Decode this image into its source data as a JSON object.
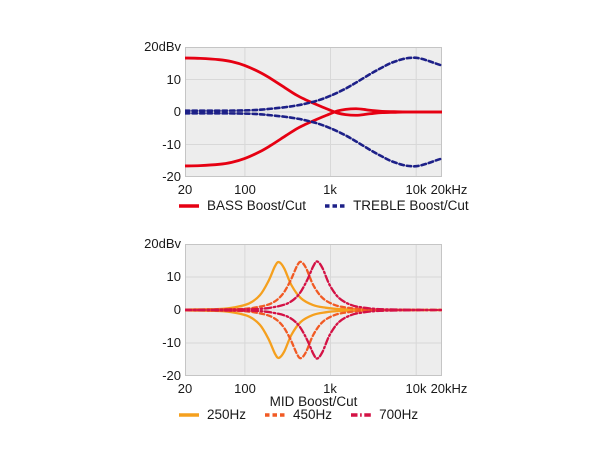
{
  "figure": {
    "colors": {
      "plot_bg": "#ededed",
      "grid": "#d8d8d8",
      "plot_border": "#c5c5c5",
      "bass_red": "#e60012",
      "treble_navy": "#1d2088",
      "mid_250_orange": "#f5a01e",
      "mid_450_orangered": "#f15a24",
      "mid_700_crimson": "#d41245"
    }
  },
  "chart_data": [
    {
      "type": "line",
      "name": "bass-treble-boost-cut",
      "x_scale": "log",
      "xlim": [
        20,
        20000
      ],
      "ylim": [
        -20,
        20
      ],
      "grid": {
        "x": [
          100,
          1000,
          10000
        ],
        "y": [
          10,
          0,
          -10
        ]
      },
      "x_tick_labels": [
        "20",
        "100",
        "1k",
        "10k",
        "20kHz"
      ],
      "y_tick_labels": [
        "20dBv",
        "10",
        "0",
        "-10",
        "-20"
      ],
      "xlabel": "",
      "legend_position": "bottom",
      "series": [
        {
          "label": "BASS Boost/Cut",
          "variant": "boost",
          "color": "#e60012",
          "style": "solid",
          "width": 2.8,
          "points": [
            [
              20,
              16.6
            ],
            [
              30,
              16.5
            ],
            [
              50,
              16.1
            ],
            [
              70,
              15.5
            ],
            [
              100,
              14.3
            ],
            [
              150,
              12.2
            ],
            [
              200,
              10.3
            ],
            [
              300,
              7.3
            ],
            [
              400,
              5.2
            ],
            [
              500,
              3.9
            ],
            [
              700,
              2.2
            ],
            [
              900,
              1.0
            ],
            [
              1000,
              0.5
            ],
            [
              1200,
              -0.3
            ],
            [
              1500,
              -0.8
            ],
            [
              2000,
              -1.0
            ],
            [
              2600,
              -0.7
            ],
            [
              3200,
              -0.4
            ],
            [
              4000,
              -0.2
            ],
            [
              5500,
              -0.1
            ],
            [
              8000,
              0
            ],
            [
              20000,
              0
            ]
          ]
        },
        {
          "label": "BASS Boost/Cut",
          "variant": "cut",
          "color": "#e60012",
          "style": "solid",
          "width": 2.8,
          "points": [
            [
              20,
              -16.6
            ],
            [
              30,
              -16.5
            ],
            [
              50,
              -16.1
            ],
            [
              70,
              -15.5
            ],
            [
              100,
              -14.3
            ],
            [
              150,
              -12.2
            ],
            [
              200,
              -10.3
            ],
            [
              300,
              -7.3
            ],
            [
              400,
              -5.2
            ],
            [
              500,
              -3.9
            ],
            [
              700,
              -2.2
            ],
            [
              900,
              -1.0
            ],
            [
              1000,
              -0.5
            ],
            [
              1200,
              0.3
            ],
            [
              1500,
              0.8
            ],
            [
              2000,
              1.0
            ],
            [
              2600,
              0.7
            ],
            [
              3200,
              0.4
            ],
            [
              4000,
              0.2
            ],
            [
              5500,
              0.1
            ],
            [
              8000,
              0
            ],
            [
              20000,
              0
            ]
          ]
        },
        {
          "label": "TREBLE Boost/Cut",
          "variant": "boost",
          "color": "#1d2088",
          "style": "dashed",
          "width": 2.6,
          "points": [
            [
              20,
              0.4
            ],
            [
              50,
              0.4
            ],
            [
              100,
              0.5
            ],
            [
              150,
              0.7
            ],
            [
              200,
              1.0
            ],
            [
              300,
              1.5
            ],
            [
              400,
              2.0
            ],
            [
              500,
              2.5
            ],
            [
              700,
              3.5
            ],
            [
              1000,
              5.0
            ],
            [
              1500,
              7.2
            ],
            [
              2000,
              9.1
            ],
            [
              3000,
              11.9
            ],
            [
              4000,
              13.7
            ],
            [
              5000,
              15.0
            ],
            [
              7000,
              16.3
            ],
            [
              9000,
              16.7
            ],
            [
              11000,
              16.5
            ],
            [
              14000,
              15.7
            ],
            [
              17000,
              14.9
            ],
            [
              20000,
              14.3
            ]
          ]
        },
        {
          "label": "TREBLE Boost/Cut",
          "variant": "cut",
          "color": "#1d2088",
          "style": "dashed",
          "width": 2.6,
          "points": [
            [
              20,
              -0.4
            ],
            [
              50,
              -0.4
            ],
            [
              100,
              -0.5
            ],
            [
              150,
              -0.7
            ],
            [
              200,
              -1.0
            ],
            [
              300,
              -1.5
            ],
            [
              400,
              -2.0
            ],
            [
              500,
              -2.5
            ],
            [
              700,
              -3.5
            ],
            [
              1000,
              -5.0
            ],
            [
              1500,
              -7.2
            ],
            [
              2000,
              -9.1
            ],
            [
              3000,
              -11.9
            ],
            [
              4000,
              -13.7
            ],
            [
              5000,
              -15.0
            ],
            [
              7000,
              -16.3
            ],
            [
              9000,
              -16.7
            ],
            [
              11000,
              -16.5
            ],
            [
              14000,
              -15.7
            ],
            [
              17000,
              -14.9
            ],
            [
              20000,
              -14.3
            ]
          ]
        }
      ]
    },
    {
      "type": "line",
      "name": "mid-boost-cut",
      "x_scale": "log",
      "xlim": [
        20,
        20000
      ],
      "ylim": [
        -20,
        20
      ],
      "grid": {
        "x": [
          100,
          1000,
          10000
        ],
        "y": [
          10,
          0,
          -10
        ]
      },
      "x_tick_labels": [
        "20",
        "100",
        "1k",
        "10k",
        "20kHz"
      ],
      "y_tick_labels": [
        "20dBv",
        "10",
        "0",
        "-10",
        "-20"
      ],
      "xlabel": "MID Boost/Cut",
      "legend_position": "bottom",
      "series": [
        {
          "label": "250Hz",
          "variant": "boost",
          "color": "#f5a01e",
          "style": "solid",
          "width": 2.3,
          "points": [
            [
              20,
              0.1
            ],
            [
              31,
              0.2
            ],
            [
              50,
              0.3
            ],
            [
              75,
              0.8
            ],
            [
              112,
              2.0
            ],
            [
              150,
              4.5
            ],
            [
              188,
              8.7
            ],
            [
              225,
              13.3
            ],
            [
              250,
              14.5
            ],
            [
              288,
              12.6
            ],
            [
              350,
              7.5
            ],
            [
              450,
              3.6
            ],
            [
              625,
              1.5
            ],
            [
              875,
              0.7
            ],
            [
              1250,
              0.3
            ],
            [
              2000,
              0.15
            ],
            [
              3800,
              0.05
            ],
            [
              8000,
              0
            ],
            [
              20000,
              0
            ]
          ]
        },
        {
          "label": "250Hz",
          "variant": "cut",
          "color": "#f5a01e",
          "style": "solid",
          "width": 2.3,
          "points": [
            [
              20,
              -0.1
            ],
            [
              31,
              -0.2
            ],
            [
              50,
              -0.3
            ],
            [
              75,
              -0.8
            ],
            [
              112,
              -2.0
            ],
            [
              150,
              -4.5
            ],
            [
              188,
              -8.7
            ],
            [
              225,
              -13.3
            ],
            [
              250,
              -14.5
            ],
            [
              288,
              -12.6
            ],
            [
              350,
              -7.5
            ],
            [
              450,
              -3.6
            ],
            [
              625,
              -1.5
            ],
            [
              875,
              -0.7
            ],
            [
              1250,
              -0.3
            ],
            [
              2000,
              -0.15
            ],
            [
              3800,
              -0.05
            ],
            [
              8000,
              0
            ],
            [
              20000,
              0
            ]
          ]
        },
        {
          "label": "450Hz",
          "variant": "boost",
          "color": "#f15a24",
          "style": "dashed",
          "width": 2.3,
          "points": [
            [
              20,
              0.05
            ],
            [
              56,
              0.2
            ],
            [
              90,
              0.3
            ],
            [
              135,
              0.8
            ],
            [
              203,
              2.0
            ],
            [
              270,
              4.5
            ],
            [
              338,
              8.7
            ],
            [
              405,
              13.3
            ],
            [
              450,
              14.6
            ],
            [
              518,
              12.7
            ],
            [
              630,
              7.5
            ],
            [
              810,
              3.6
            ],
            [
              1125,
              1.5
            ],
            [
              1575,
              0.7
            ],
            [
              2250,
              0.3
            ],
            [
              3600,
              0.15
            ],
            [
              6800,
              0.05
            ],
            [
              14000,
              0
            ],
            [
              20000,
              0
            ]
          ]
        },
        {
          "label": "450Hz",
          "variant": "cut",
          "color": "#f15a24",
          "style": "dashed",
          "width": 2.3,
          "points": [
            [
              20,
              -0.05
            ],
            [
              56,
              -0.2
            ],
            [
              90,
              -0.3
            ],
            [
              135,
              -0.8
            ],
            [
              203,
              -2.0
            ],
            [
              270,
              -4.5
            ],
            [
              338,
              -8.7
            ],
            [
              405,
              -13.3
            ],
            [
              450,
              -14.6
            ],
            [
              518,
              -12.7
            ],
            [
              630,
              -7.5
            ],
            [
              810,
              -3.6
            ],
            [
              1125,
              -1.5
            ],
            [
              1575,
              -0.7
            ],
            [
              2250,
              -0.3
            ],
            [
              3600,
              -0.15
            ],
            [
              6800,
              -0.05
            ],
            [
              14000,
              0
            ],
            [
              20000,
              0
            ]
          ]
        },
        {
          "label": "700Hz",
          "variant": "boost",
          "color": "#d41245",
          "style": "dashdot",
          "width": 2.3,
          "points": [
            [
              20,
              0.05
            ],
            [
              88,
              0.2
            ],
            [
              140,
              0.3
            ],
            [
              210,
              0.8
            ],
            [
              315,
              2.0
            ],
            [
              420,
              4.5
            ],
            [
              525,
              8.7
            ],
            [
              630,
              13.3
            ],
            [
              700,
              14.7
            ],
            [
              805,
              12.7
            ],
            [
              980,
              7.5
            ],
            [
              1260,
              3.6
            ],
            [
              1750,
              1.5
            ],
            [
              2450,
              0.7
            ],
            [
              3500,
              0.3
            ],
            [
              5600,
              0.15
            ],
            [
              10500,
              0.05
            ],
            [
              20000,
              0
            ]
          ]
        },
        {
          "label": "700Hz",
          "variant": "cut",
          "color": "#d41245",
          "style": "dashdot",
          "width": 2.3,
          "points": [
            [
              20,
              -0.05
            ],
            [
              88,
              -0.2
            ],
            [
              140,
              -0.3
            ],
            [
              210,
              -0.8
            ],
            [
              315,
              -2.0
            ],
            [
              420,
              -4.5
            ],
            [
              525,
              -8.7
            ],
            [
              630,
              -13.3
            ],
            [
              700,
              -14.7
            ],
            [
              805,
              -12.7
            ],
            [
              980,
              -7.5
            ],
            [
              1260,
              -3.6
            ],
            [
              1750,
              -1.5
            ],
            [
              2450,
              -0.7
            ],
            [
              3500,
              -0.3
            ],
            [
              5600,
              -0.15
            ],
            [
              10500,
              -0.05
            ],
            [
              20000,
              0
            ]
          ]
        }
      ]
    }
  ]
}
